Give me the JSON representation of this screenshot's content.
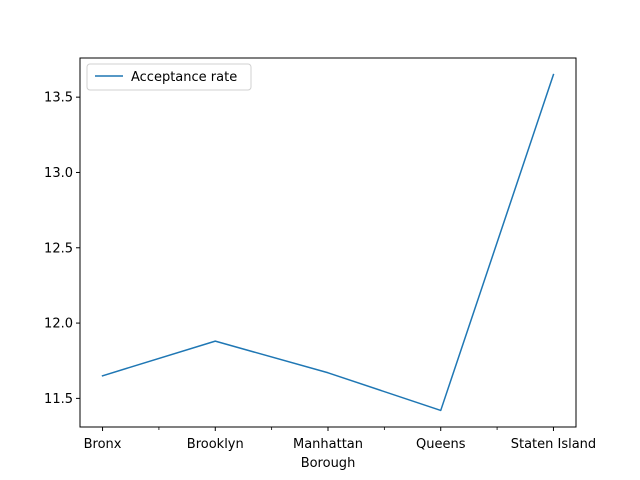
{
  "chart_data": {
    "type": "line",
    "title": "",
    "xlabel": "Borough",
    "ylabel": "",
    "categories": [
      "Bronx",
      "Brooklyn",
      "Manhattan",
      "Queens",
      "Staten Island"
    ],
    "series": [
      {
        "name": "Acceptance rate",
        "values": [
          11.65,
          11.88,
          11.67,
          11.42,
          13.65
        ],
        "color": "#1f77b4"
      }
    ],
    "ylim": [
      11.31,
      13.76
    ],
    "yticks": [
      11.5,
      12.0,
      12.5,
      13.0,
      13.5
    ],
    "ytick_labels": [
      "11.5",
      "12.0",
      "12.5",
      "13.0",
      "13.5"
    ],
    "x_minor_ticks": true,
    "grid": false,
    "legend": "upper-left"
  }
}
